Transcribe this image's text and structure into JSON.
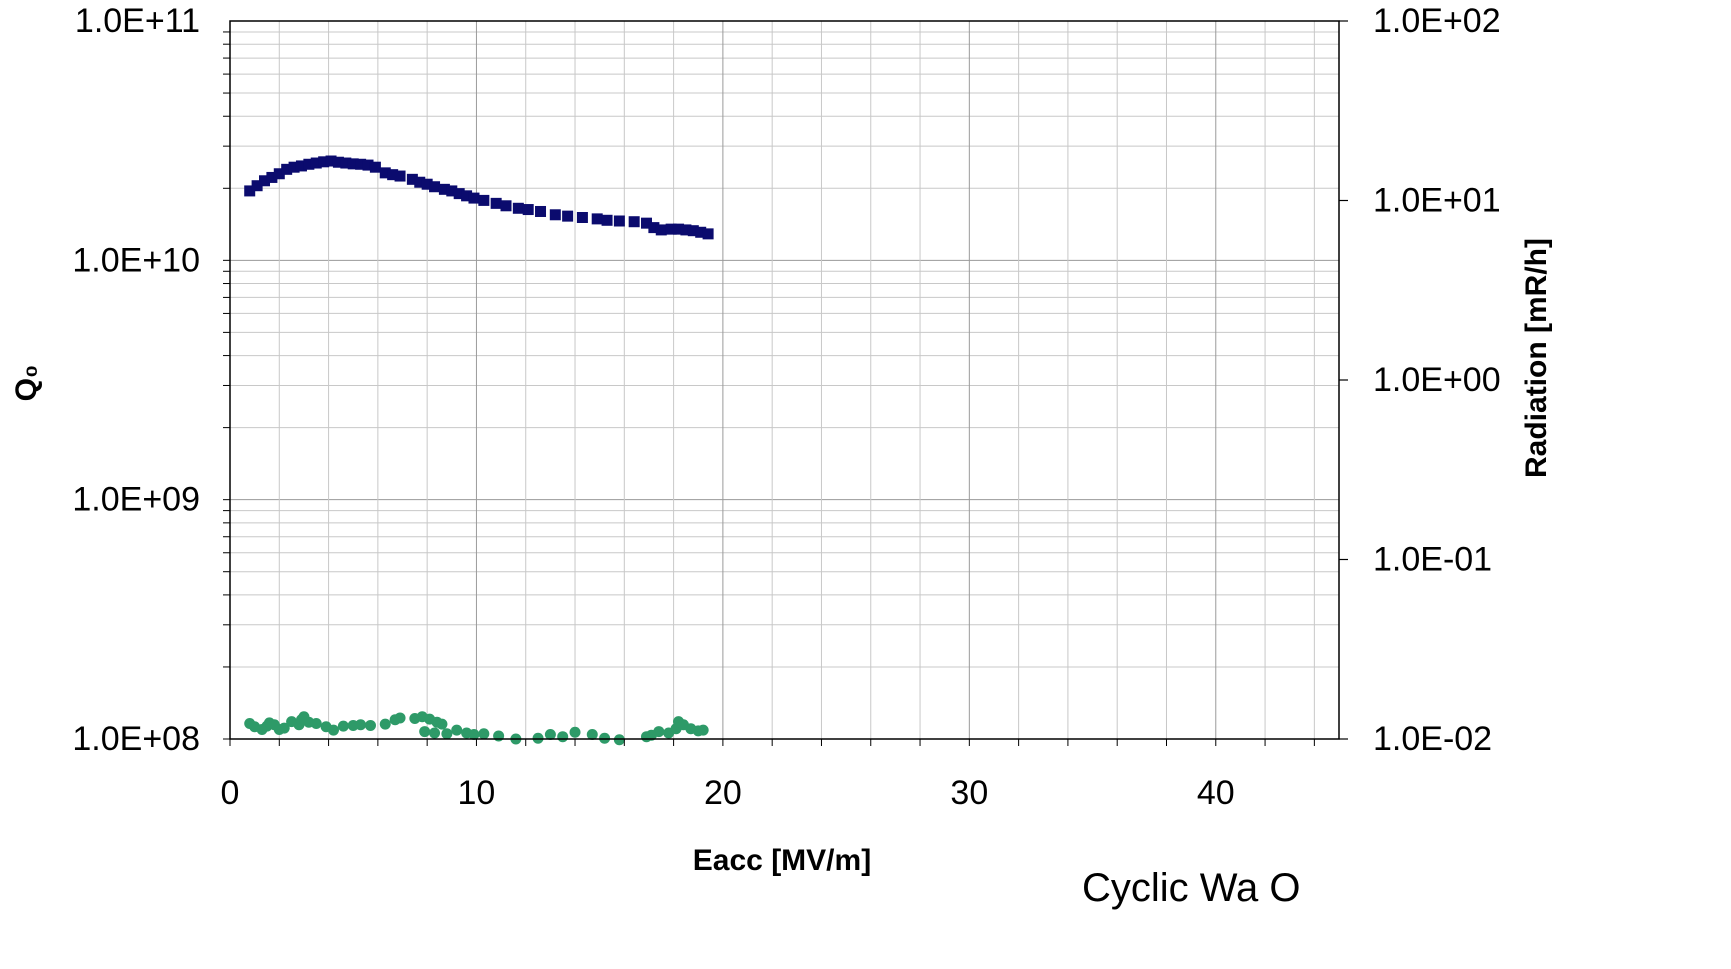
{
  "chart_data": {
    "type": "scatter",
    "title": "",
    "xlabel": "Eacc [MV/m]",
    "ylabel_left": "Q₀",
    "ylabel_right": "Radiation [mR/h]",
    "xlim": [
      0,
      45
    ],
    "ylim_left": [
      100000000,
      100000000000
    ],
    "ylim_right": [
      0.01,
      100
    ],
    "yscale": "log",
    "grid": true,
    "x_ticks": [
      "0",
      "10",
      "20",
      "30",
      "40"
    ],
    "y_left_ticks": [
      "1.0E+08",
      "1.0E+09",
      "1.0E+10",
      "1.0E+11"
    ],
    "y_right_ticks": [
      "1.0E-02",
      "1.0E-01",
      "1.0E+00",
      "1.0E+01",
      "1.0E+02"
    ],
    "series": [
      {
        "axis": "left",
        "marker": "square",
        "color": "#0b0b6e",
        "points": [
          [
            0.8,
            19500000000.0
          ],
          [
            1.1,
            20500000000.0
          ],
          [
            1.4,
            21500000000.0
          ],
          [
            1.7,
            22200000000.0
          ],
          [
            2.0,
            23000000000.0
          ],
          [
            2.3,
            24000000000.0
          ],
          [
            2.6,
            24500000000.0
          ],
          [
            2.9,
            24800000000.0
          ],
          [
            3.2,
            25200000000.0
          ],
          [
            3.5,
            25500000000.0
          ],
          [
            3.8,
            25800000000.0
          ],
          [
            4.1,
            26000000000.0
          ],
          [
            4.4,
            25700000000.0
          ],
          [
            4.7,
            25500000000.0
          ],
          [
            5.0,
            25300000000.0
          ],
          [
            5.3,
            25200000000.0
          ],
          [
            5.6,
            25000000000.0
          ],
          [
            5.9,
            24500000000.0
          ],
          [
            6.3,
            23200000000.0
          ],
          [
            6.6,
            22800000000.0
          ],
          [
            6.9,
            22500000000.0
          ],
          [
            7.4,
            21800000000.0
          ],
          [
            7.7,
            21200000000.0
          ],
          [
            8.0,
            20800000000.0
          ],
          [
            8.3,
            20300000000.0
          ],
          [
            8.7,
            19800000000.0
          ],
          [
            9.0,
            19500000000.0
          ],
          [
            9.3,
            19000000000.0
          ],
          [
            9.6,
            18600000000.0
          ],
          [
            9.9,
            18200000000.0
          ],
          [
            10.3,
            17800000000.0
          ],
          [
            10.8,
            17300000000.0
          ],
          [
            11.2,
            16900000000.0
          ],
          [
            11.7,
            16500000000.0
          ],
          [
            12.1,
            16300000000.0
          ],
          [
            12.6,
            16000000000.0
          ],
          [
            13.2,
            15500000000.0
          ],
          [
            13.7,
            15300000000.0
          ],
          [
            14.3,
            15100000000.0
          ],
          [
            14.9,
            14900000000.0
          ],
          [
            15.3,
            14700000000.0
          ],
          [
            15.8,
            14600000000.0
          ],
          [
            16.4,
            14500000000.0
          ],
          [
            16.9,
            14300000000.0
          ],
          [
            17.2,
            13700000000.0
          ],
          [
            17.5,
            13400000000.0
          ],
          [
            17.9,
            13500000000.0
          ],
          [
            18.2,
            13500000000.0
          ],
          [
            18.5,
            13400000000.0
          ],
          [
            18.8,
            13300000000.0
          ],
          [
            19.1,
            13100000000.0
          ],
          [
            19.4,
            12900000000.0
          ]
        ]
      },
      {
        "axis": "right",
        "marker": "circle",
        "color": "#2e9a68",
        "points": [
          [
            0.8,
            0.0122
          ],
          [
            1.0,
            0.0117
          ],
          [
            1.3,
            0.0113
          ],
          [
            1.5,
            0.0118
          ],
          [
            1.6,
            0.0123
          ],
          [
            1.8,
            0.012
          ],
          [
            2.0,
            0.0113
          ],
          [
            2.2,
            0.0115
          ],
          [
            2.5,
            0.0125
          ],
          [
            2.8,
            0.012
          ],
          [
            2.9,
            0.0128
          ],
          [
            3.0,
            0.0133
          ],
          [
            3.2,
            0.0124
          ],
          [
            3.5,
            0.0122
          ],
          [
            3.9,
            0.0117
          ],
          [
            4.2,
            0.0112
          ],
          [
            4.6,
            0.0118
          ],
          [
            5.0,
            0.0119
          ],
          [
            5.3,
            0.012
          ],
          [
            5.7,
            0.0119
          ],
          [
            6.3,
            0.0121
          ],
          [
            6.7,
            0.0128
          ],
          [
            6.9,
            0.0131
          ],
          [
            7.5,
            0.013
          ],
          [
            7.8,
            0.0133
          ],
          [
            8.1,
            0.0129
          ],
          [
            8.4,
            0.0124
          ],
          [
            8.6,
            0.0121
          ],
          [
            7.9,
            0.011
          ],
          [
            8.3,
            0.0108
          ],
          [
            8.8,
            0.0107
          ],
          [
            9.2,
            0.0112
          ],
          [
            9.6,
            0.0108
          ],
          [
            9.9,
            0.0106
          ],
          [
            10.3,
            0.0107
          ],
          [
            10.9,
            0.0104
          ],
          [
            11.6,
            0.01
          ],
          [
            12.5,
            0.0101
          ],
          [
            13.0,
            0.0106
          ],
          [
            13.5,
            0.0103
          ],
          [
            14.0,
            0.0109
          ],
          [
            14.7,
            0.0106
          ],
          [
            15.2,
            0.0101
          ],
          [
            15.8,
            0.0099
          ],
          [
            16.9,
            0.0103
          ],
          [
            17.1,
            0.0105
          ],
          [
            17.4,
            0.011
          ],
          [
            17.8,
            0.0108
          ],
          [
            18.1,
            0.0114
          ],
          [
            18.2,
            0.0125
          ],
          [
            18.4,
            0.012
          ],
          [
            18.7,
            0.0114
          ],
          [
            19.0,
            0.0111
          ],
          [
            19.2,
            0.0112
          ]
        ]
      }
    ]
  },
  "footer": {
    "cut_text": "Cyclic Wa O"
  }
}
